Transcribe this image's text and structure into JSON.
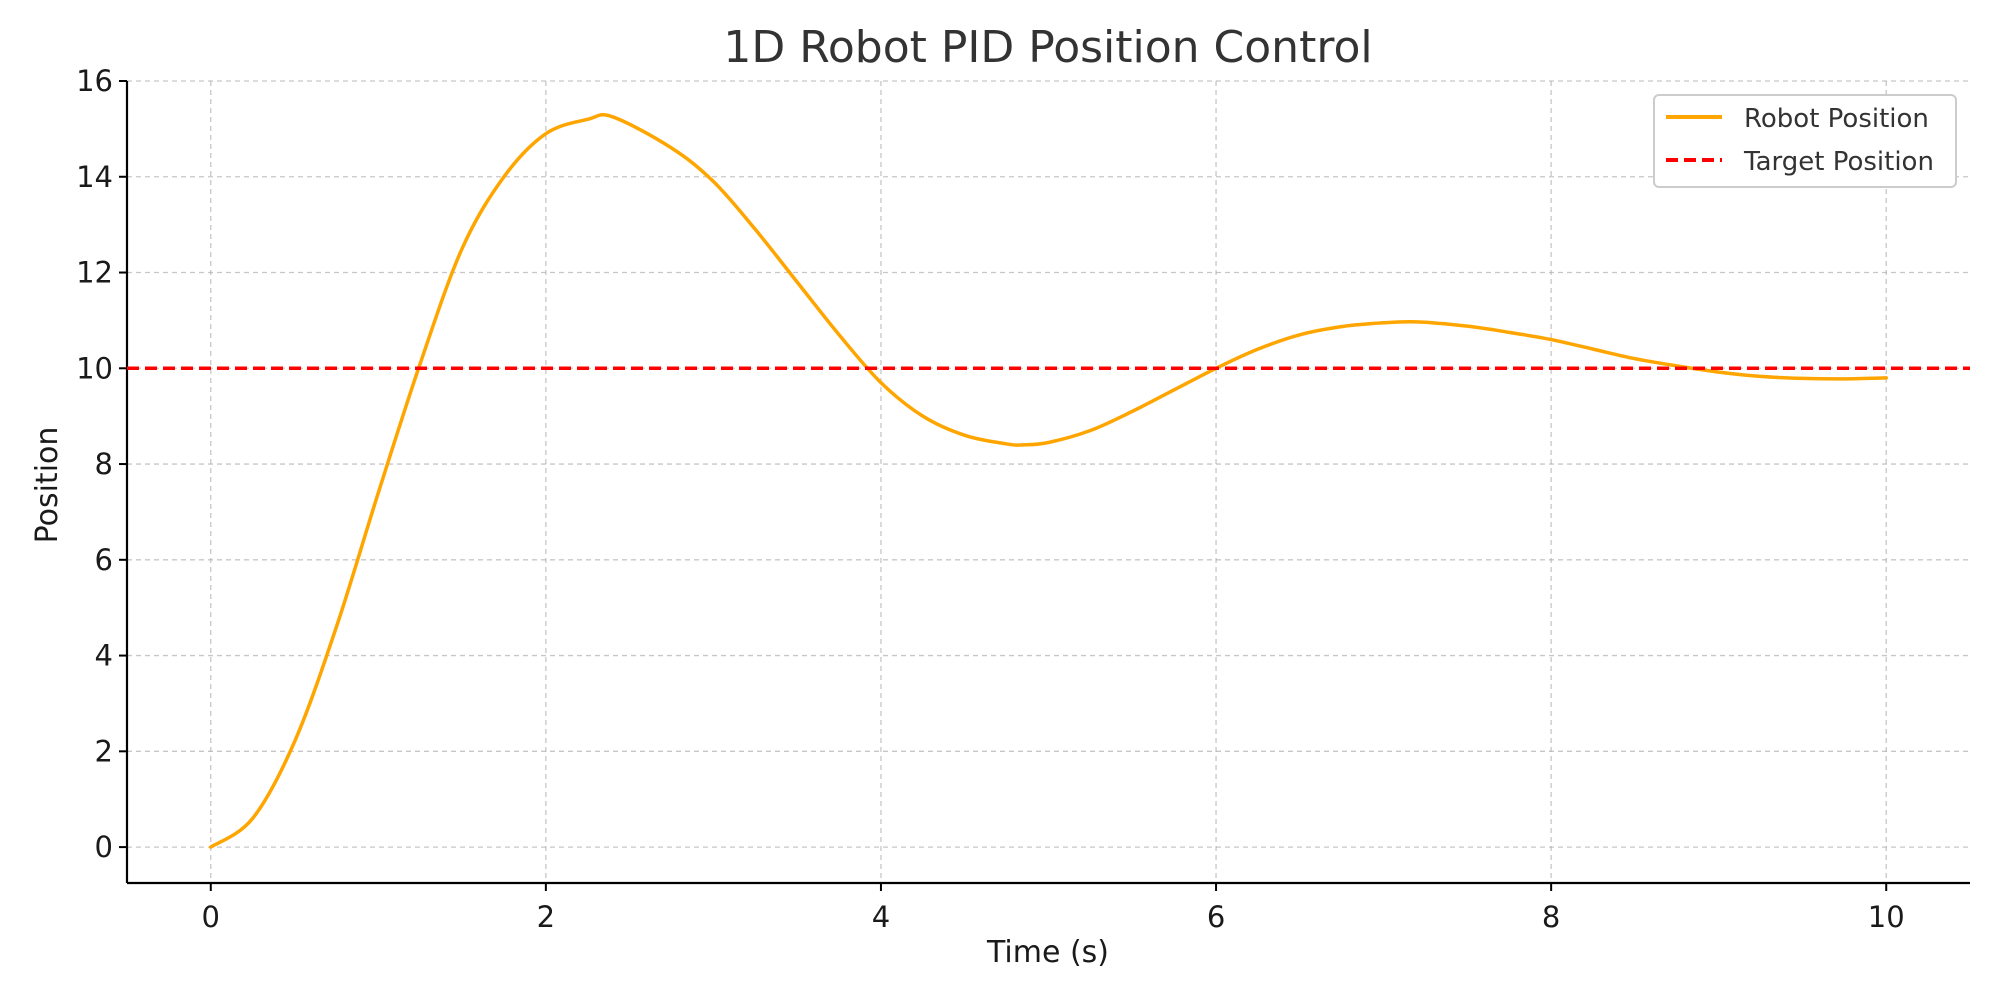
{
  "chart_data": {
    "type": "line",
    "title": "1D Robot PID Position Control",
    "xlabel": "Time (s)",
    "ylabel": "Position",
    "xlim": [
      -0.5,
      10.5
    ],
    "ylim": [
      -0.75,
      16
    ],
    "xticks": [
      0,
      2,
      4,
      6,
      8,
      10
    ],
    "yticks": [
      0,
      2,
      4,
      6,
      8,
      10,
      12,
      14,
      16
    ],
    "grid": true,
    "legend_position": "top-right",
    "series": [
      {
        "name": "Robot Position",
        "color": "#FFA500",
        "style": "solid",
        "x": [
          0,
          0.25,
          0.5,
          0.75,
          1.0,
          1.25,
          1.5,
          1.75,
          2.0,
          2.25,
          2.4,
          2.75,
          3.0,
          3.25,
          3.5,
          3.75,
          4.0,
          4.25,
          4.5,
          4.75,
          4.85,
          5.0,
          5.25,
          5.5,
          5.75,
          6.0,
          6.25,
          6.5,
          6.75,
          7.0,
          7.2,
          7.5,
          7.75,
          8.0,
          8.25,
          8.5,
          8.75,
          9.0,
          9.25,
          9.5,
          9.75,
          10.0
        ],
        "y": [
          0,
          0.6,
          2.2,
          4.6,
          7.4,
          10.1,
          12.5,
          14.0,
          14.9,
          15.2,
          15.25,
          14.6,
          13.9,
          12.9,
          11.8,
          10.7,
          9.7,
          9.0,
          8.6,
          8.42,
          8.4,
          8.45,
          8.7,
          9.1,
          9.55,
          10.0,
          10.4,
          10.7,
          10.87,
          10.95,
          10.97,
          10.88,
          10.75,
          10.6,
          10.4,
          10.2,
          10.05,
          9.92,
          9.83,
          9.79,
          9.78,
          9.8
        ]
      },
      {
        "name": "Target Position",
        "color": "#FF0000",
        "style": "dashed",
        "constant_y": 10
      }
    ]
  }
}
